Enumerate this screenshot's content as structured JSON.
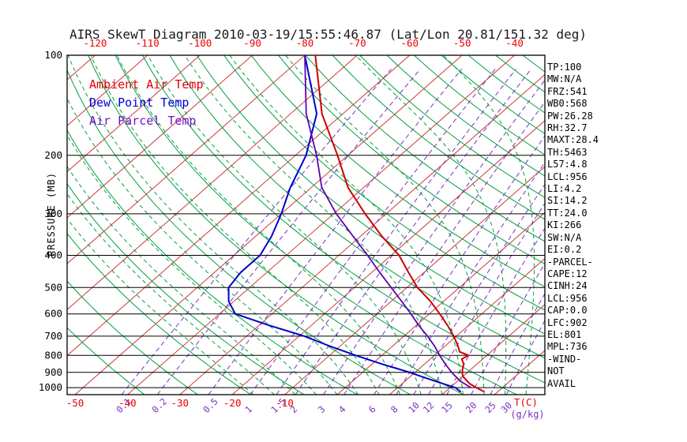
{
  "title": "AIRS SkewT Diagram 2010-03-19/15:55:46.87 (Lat/Lon 20.81/151.32 deg)",
  "chart_data": {
    "type": "skewt",
    "title": "AIRS SkewT Diagram 2010-03-19/15:55:46.87 (Lat/Lon 20.81/151.32 deg)",
    "y_axis": {
      "label": "PRESSURE (MB)",
      "scale": "log",
      "range": [
        100,
        1050
      ],
      "ticks": [
        100,
        200,
        300,
        400,
        500,
        600,
        700,
        800,
        900,
        1000
      ]
    },
    "x_axis": {
      "unit_label": "T(C)",
      "top_ticks": [
        -120,
        -110,
        -100,
        -90,
        -80,
        -70,
        -60,
        -50,
        -40
      ],
      "bottom_ticks": [
        -50,
        -40,
        -30,
        -20,
        -10
      ]
    },
    "mixing_ratio": {
      "unit_label": "(g/kg)",
      "values": [
        0.1,
        0.2,
        0.5,
        1,
        1.5,
        2,
        3,
        4,
        6,
        8,
        10,
        12,
        15,
        20,
        25,
        30
      ]
    },
    "isotherms": {
      "start": -130,
      "end": 40,
      "step": 10
    },
    "dry_adiabats": {
      "start": -40,
      "end": 190,
      "step": 10
    },
    "moist_adiabats": {
      "start": -16,
      "end": 36,
      "step": 4
    },
    "legend": [
      {
        "label": "Ambient Air Temp",
        "color": "#e00000"
      },
      {
        "label": "Dew Point Temp",
        "color": "#0000dd"
      },
      {
        "label": "Air Parcel Temp",
        "color": "#7711cc"
      }
    ],
    "series": [
      {
        "key": "ambient-air-temp",
        "name": "Ambient Air Temp",
        "color": "#d00000",
        "width": 2,
        "points": [
          [
            1030,
            27.5
          ],
          [
            1000,
            25
          ],
          [
            975,
            23
          ],
          [
            950,
            21.5
          ],
          [
            925,
            20
          ],
          [
            900,
            19
          ],
          [
            875,
            18.2
          ],
          [
            850,
            17.5
          ],
          [
            820,
            16
          ],
          [
            800,
            16.5
          ],
          [
            780,
            14
          ],
          [
            750,
            12.5
          ],
          [
            700,
            9.5
          ],
          [
            650,
            6
          ],
          [
            600,
            2
          ],
          [
            550,
            -2.5
          ],
          [
            500,
            -8
          ],
          [
            450,
            -13
          ],
          [
            400,
            -18.5
          ],
          [
            350,
            -26
          ],
          [
            300,
            -34
          ],
          [
            250,
            -43
          ],
          [
            200,
            -52
          ],
          [
            150,
            -64
          ],
          [
            100,
            -78
          ]
        ]
      },
      {
        "key": "dew-point-temp",
        "name": "Dew Point Temp",
        "color": "#0000c8",
        "width": 2,
        "points": [
          [
            1030,
            23
          ],
          [
            1000,
            21
          ],
          [
            975,
            18
          ],
          [
            950,
            15
          ],
          [
            925,
            12
          ],
          [
            900,
            9
          ],
          [
            850,
            2
          ],
          [
            800,
            -5
          ],
          [
            750,
            -12
          ],
          [
            700,
            -19
          ],
          [
            650,
            -28
          ],
          [
            600,
            -37
          ],
          [
            550,
            -41
          ],
          [
            500,
            -44
          ],
          [
            450,
            -45
          ],
          [
            400,
            -45
          ],
          [
            350,
            -47
          ],
          [
            300,
            -50
          ],
          [
            250,
            -54
          ],
          [
            200,
            -58
          ],
          [
            150,
            -65
          ],
          [
            100,
            -80
          ]
        ]
      },
      {
        "key": "air-parcel-temp",
        "name": "Air Parcel Temp",
        "color": "#5e00b0",
        "width": 1.8,
        "points": [
          [
            1000,
            24
          ],
          [
            956,
            20.5
          ],
          [
            900,
            17
          ],
          [
            850,
            14
          ],
          [
            800,
            11
          ],
          [
            750,
            8
          ],
          [
            700,
            4.5
          ],
          [
            650,
            0.5
          ],
          [
            600,
            -3.5
          ],
          [
            550,
            -8
          ],
          [
            500,
            -13
          ],
          [
            450,
            -18.5
          ],
          [
            400,
            -24.5
          ],
          [
            350,
            -31.5
          ],
          [
            300,
            -39.5
          ],
          [
            250,
            -48
          ],
          [
            200,
            -56
          ],
          [
            150,
            -67
          ],
          [
            100,
            -80
          ]
        ]
      }
    ],
    "colors": {
      "isotherm": "#cc3b3b",
      "dry_adiabat": "#00a040",
      "moist_adiabat": "#00a040",
      "mixing_ratio": "#7733bb",
      "pressure_line": "#000000",
      "axis": "#000000",
      "temp_tick_label": "#ee0000",
      "pressure_tick_label": "#000000",
      "title": "#1a1a1a"
    }
  },
  "stats": {
    "lines": [
      "TP:100",
      "MW:N/A",
      "FRZ:541",
      "WB0:568",
      "PW:26.28",
      "RH:32.7",
      "MAXT:28.4",
      "TH:5463",
      "L57:4.8",
      "LCL:956",
      "LI:4.2",
      "SI:14.2",
      "TT:24.0",
      "KI:266",
      "SW:N/A",
      "EI:0.2",
      "-PARCEL-",
      "CAPE:12",
      "CINH:24",
      "LCL:956",
      "CAP:0.0",
      "LFC:902",
      "EL:801",
      "MPL:736",
      "-WIND-",
      "NOT",
      "AVAIL"
    ]
  }
}
